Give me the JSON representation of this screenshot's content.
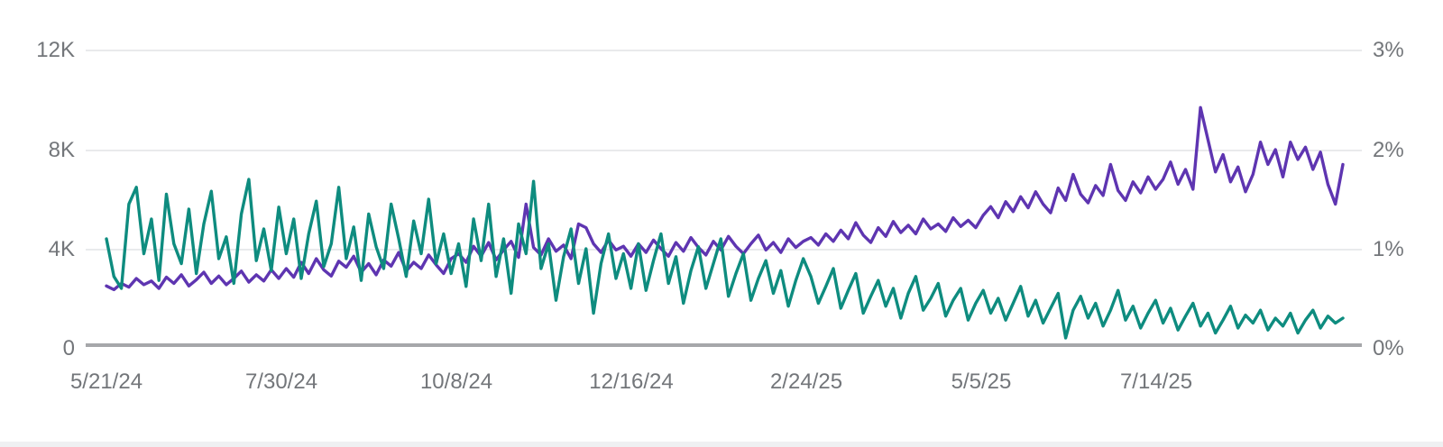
{
  "page": {
    "background_color": "#ffffff",
    "bottom_bar_color": "#eff0f2",
    "axis_label_color": "#73767a",
    "gridline_color": "#e9eaec",
    "baseline_color": "#a6a7aa"
  },
  "chart_data": {
    "type": "line",
    "title": "",
    "legend": "none",
    "grid": true,
    "x_tick_labels": [
      "5/21/24",
      "7/30/24",
      "10/8/24",
      "12/16/24",
      "2/24/25",
      "5/5/25",
      "7/14/25"
    ],
    "x_range_note": "daily series starting 5/21/24, sampled here approx. every 3 days",
    "left_axis": {
      "ticks": [
        "12K",
        "8K",
        "4K",
        "0"
      ],
      "range": [
        0,
        12000
      ],
      "unit": "count"
    },
    "right_axis": {
      "ticks": [
        "3%",
        "2%",
        "1%",
        "0%"
      ],
      "range": [
        0,
        3
      ],
      "unit": "percent"
    },
    "series": [
      {
        "name": "purple-series",
        "color": "#5e35b1",
        "axis": "left",
        "unit": "K",
        "values": [
          2.5,
          2.35,
          2.6,
          2.45,
          2.8,
          2.55,
          2.7,
          2.4,
          2.85,
          2.6,
          2.95,
          2.5,
          2.75,
          3.05,
          2.6,
          2.9,
          2.55,
          2.8,
          3.1,
          2.65,
          2.95,
          2.7,
          3.15,
          2.8,
          3.2,
          2.85,
          3.45,
          3.0,
          3.6,
          3.15,
          2.9,
          3.5,
          3.25,
          3.7,
          3.05,
          3.4,
          2.95,
          3.55,
          3.3,
          3.85,
          3.1,
          3.45,
          3.2,
          3.75,
          3.35,
          3.0,
          3.6,
          3.8,
          3.45,
          4.1,
          3.7,
          4.25,
          3.55,
          3.95,
          4.3,
          3.65,
          5.8,
          4.05,
          3.75,
          4.4,
          3.9,
          4.15,
          3.6,
          5.0,
          4.85,
          4.2,
          3.85,
          4.35,
          3.95,
          4.1,
          3.7,
          4.2,
          3.85,
          4.35,
          4.0,
          3.7,
          4.25,
          3.9,
          4.45,
          4.05,
          3.75,
          4.3,
          3.95,
          4.5,
          4.1,
          3.8,
          4.2,
          4.55,
          3.95,
          4.25,
          3.85,
          4.4,
          4.05,
          4.3,
          4.45,
          4.15,
          4.6,
          4.3,
          4.75,
          4.4,
          5.05,
          4.55,
          4.25,
          4.85,
          4.5,
          5.1,
          4.65,
          4.95,
          4.6,
          5.2,
          4.8,
          5.0,
          4.7,
          5.25,
          4.9,
          5.15,
          4.85,
          5.35,
          5.7,
          5.25,
          5.9,
          5.5,
          6.1,
          5.65,
          6.3,
          5.8,
          5.45,
          6.45,
          5.95,
          7.0,
          6.2,
          5.85,
          6.55,
          6.15,
          7.4,
          6.35,
          5.95,
          6.7,
          6.25,
          6.9,
          6.4,
          6.8,
          7.5,
          6.6,
          7.2,
          6.4,
          9.7,
          8.4,
          7.1,
          7.8,
          6.7,
          7.3,
          6.3,
          7.0,
          8.3,
          7.4,
          8.0,
          6.9,
          8.3,
          7.6,
          8.1,
          7.2,
          7.9,
          6.6,
          5.8,
          7.4
        ]
      },
      {
        "name": "teal-series",
        "color": "#0e8c7f",
        "axis": "right",
        "unit": "%",
        "values": [
          1.1,
          0.72,
          0.6,
          1.45,
          1.62,
          0.95,
          1.3,
          0.68,
          1.55,
          1.05,
          0.85,
          1.4,
          0.75,
          1.25,
          1.58,
          0.9,
          1.12,
          0.65,
          1.35,
          1.7,
          0.88,
          1.2,
          0.78,
          1.42,
          0.95,
          1.3,
          0.7,
          1.15,
          1.48,
          0.82,
          1.05,
          1.62,
          0.9,
          1.22,
          0.68,
          1.35,
          1.02,
          0.8,
          1.45,
          1.1,
          0.72,
          1.28,
          0.95,
          1.5,
          0.85,
          1.15,
          0.75,
          1.05,
          0.62,
          1.3,
          0.88,
          1.45,
          0.72,
          1.1,
          0.55,
          1.25,
          0.95,
          1.68,
          0.8,
          1.05,
          0.48,
          0.92,
          1.2,
          0.65,
          1.0,
          0.35,
          0.85,
          1.15,
          0.7,
          0.95,
          0.6,
          1.05,
          0.58,
          0.88,
          1.15,
          0.65,
          0.92,
          0.45,
          0.78,
          1.02,
          0.6,
          0.85,
          1.1,
          0.52,
          0.75,
          0.95,
          0.48,
          0.7,
          0.88,
          0.55,
          0.78,
          0.42,
          0.68,
          0.9,
          0.72,
          0.45,
          0.62,
          0.8,
          0.4,
          0.58,
          0.75,
          0.35,
          0.52,
          0.68,
          0.42,
          0.6,
          0.3,
          0.55,
          0.72,
          0.38,
          0.5,
          0.65,
          0.32,
          0.48,
          0.6,
          0.28,
          0.45,
          0.58,
          0.35,
          0.5,
          0.28,
          0.45,
          0.62,
          0.32,
          0.48,
          0.25,
          0.4,
          0.55,
          0.1,
          0.38,
          0.52,
          0.3,
          0.45,
          0.22,
          0.38,
          0.58,
          0.28,
          0.42,
          0.2,
          0.35,
          0.48,
          0.25,
          0.4,
          0.18,
          0.32,
          0.45,
          0.22,
          0.35,
          0.15,
          0.28,
          0.42,
          0.2,
          0.33,
          0.25,
          0.38,
          0.18,
          0.3,
          0.22,
          0.35,
          0.15,
          0.28,
          0.38,
          0.2,
          0.32,
          0.25,
          0.3
        ]
      }
    ]
  }
}
